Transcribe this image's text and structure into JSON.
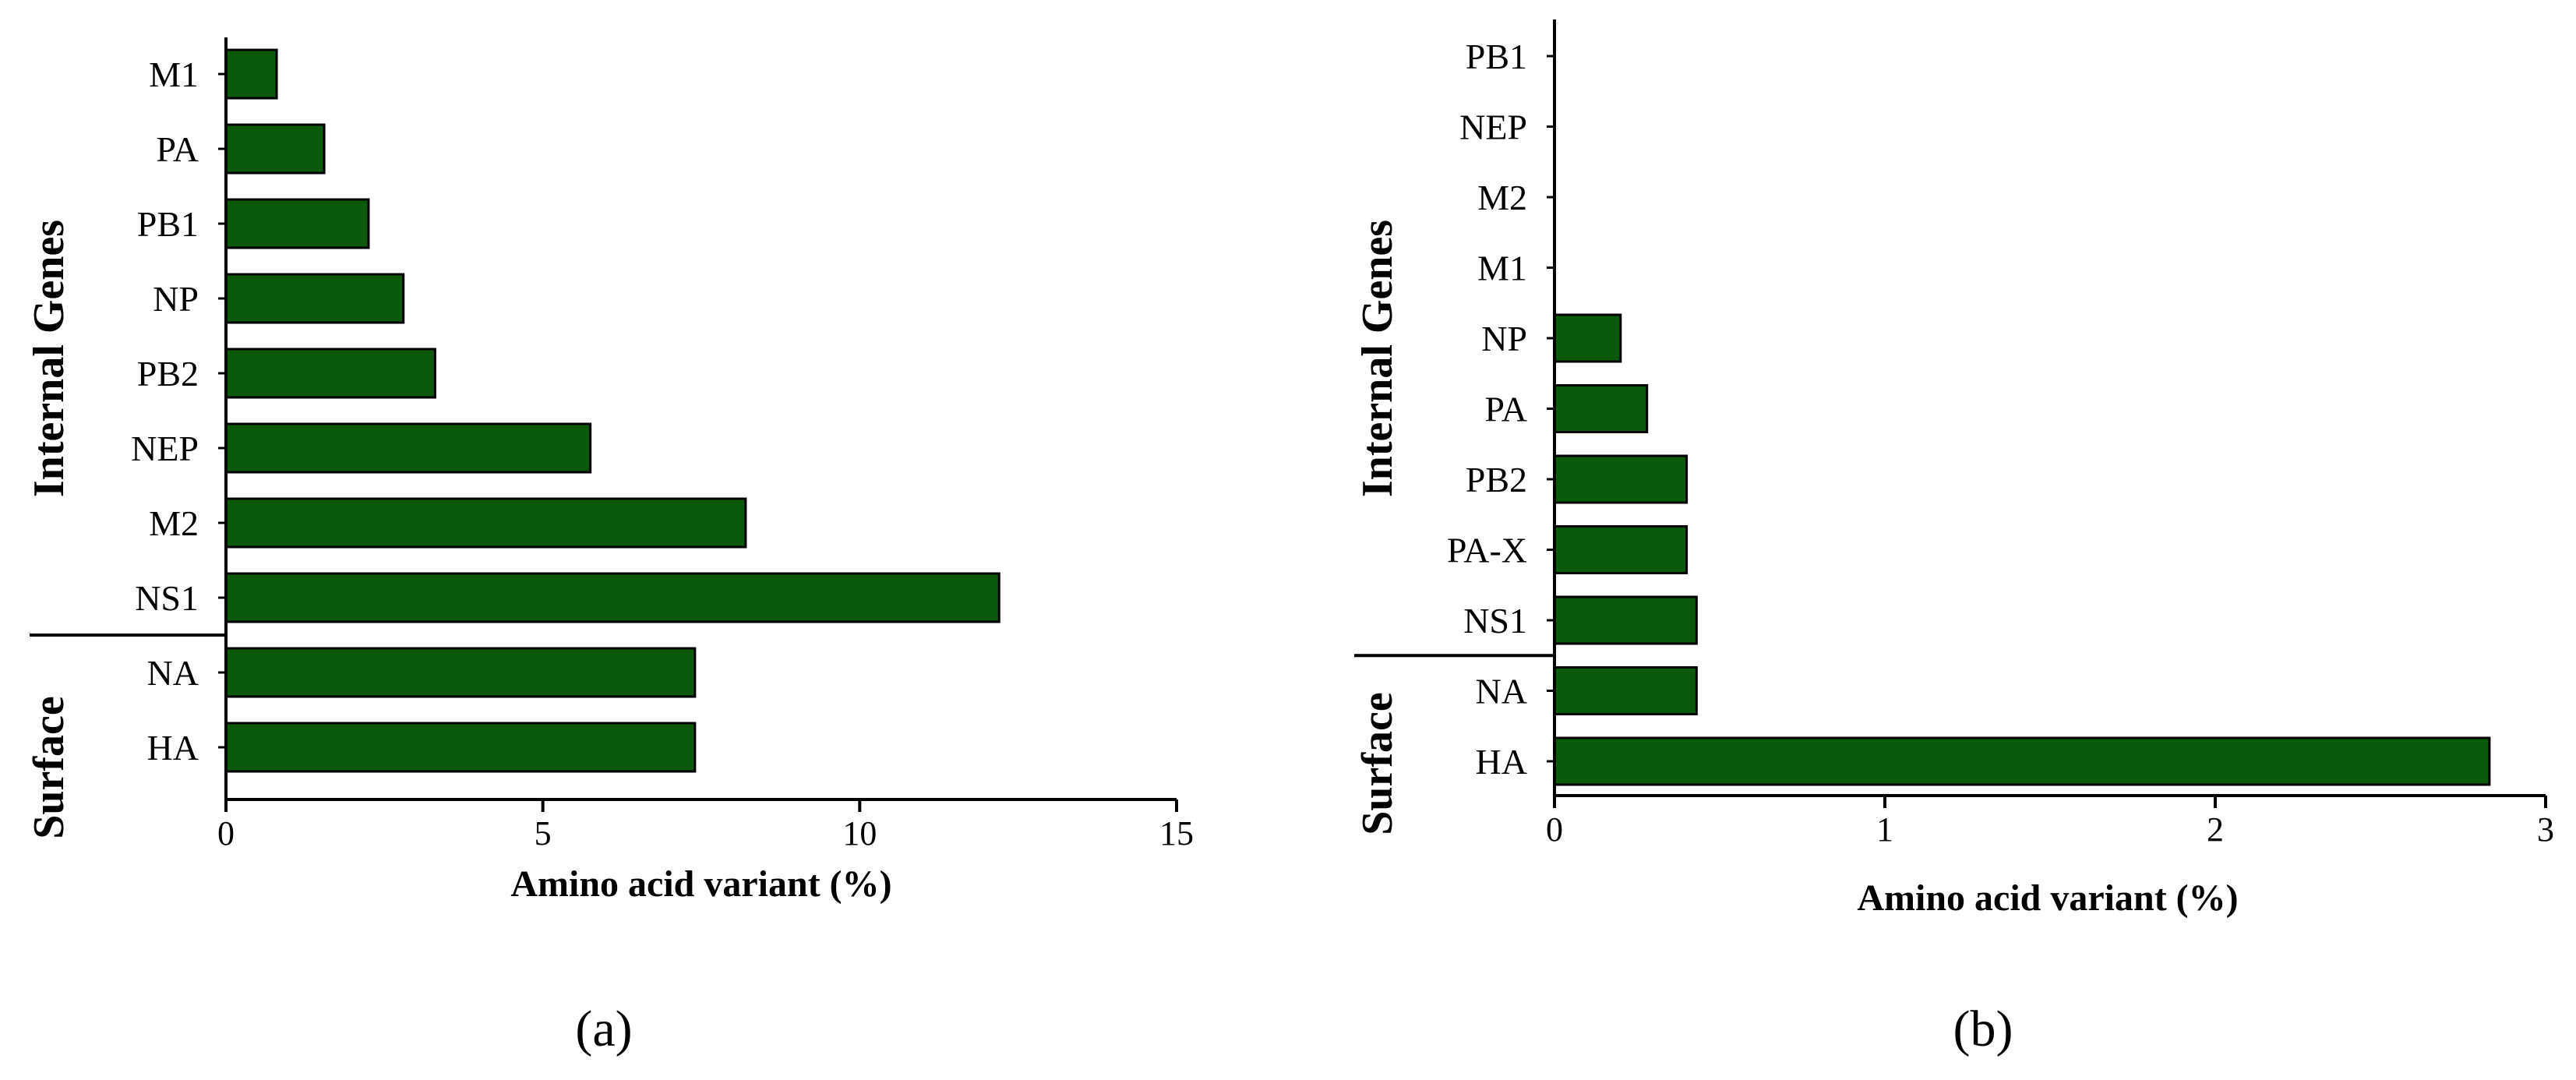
{
  "chart_data": [
    {
      "type": "bar",
      "orientation": "horizontal",
      "panel_label": "(a)",
      "xlabel": "Amino acid variant (%)",
      "xlim": [
        0,
        15
      ],
      "xticks": [
        0,
        5,
        10,
        15
      ],
      "categories": [
        "M1",
        "PA",
        "PB1",
        "NP",
        "PB2",
        "NEP",
        "M2",
        "NS1",
        "NA",
        "HA"
      ],
      "values": [
        0.8,
        1.55,
        2.25,
        2.8,
        3.3,
        5.75,
        8.2,
        12.2,
        7.4,
        7.4
      ],
      "groups": [
        {
          "label": "Internal Genes",
          "categories": [
            "M1",
            "PA",
            "PB1",
            "NP",
            "PB2",
            "NEP",
            "M2",
            "NS1"
          ]
        },
        {
          "label": "Surface",
          "categories": [
            "NA",
            "HA"
          ]
        }
      ],
      "bar_color": "#0b5a0b"
    },
    {
      "type": "bar",
      "orientation": "horizontal",
      "panel_label": "(b)",
      "xlabel": "Amino acid variant (%)",
      "xlim": [
        0,
        3
      ],
      "xticks": [
        0,
        1,
        2,
        3
      ],
      "categories": [
        "PB1",
        "NEP",
        "M2",
        "M1",
        "NP",
        "PA",
        "PB2",
        "PA-X",
        "NS1",
        "NA",
        "HA"
      ],
      "values": [
        0,
        0,
        0,
        0,
        0.2,
        0.28,
        0.4,
        0.4,
        0.43,
        0.43,
        2.83
      ],
      "groups": [
        {
          "label": "Internal Genes",
          "categories": [
            "PB1",
            "NEP",
            "M2",
            "M1",
            "NP",
            "PA",
            "PB2",
            "PA-X",
            "NS1"
          ]
        },
        {
          "label": "Surface",
          "categories": [
            "NA",
            "HA"
          ]
        }
      ],
      "bar_color": "#0b5a0b"
    }
  ]
}
